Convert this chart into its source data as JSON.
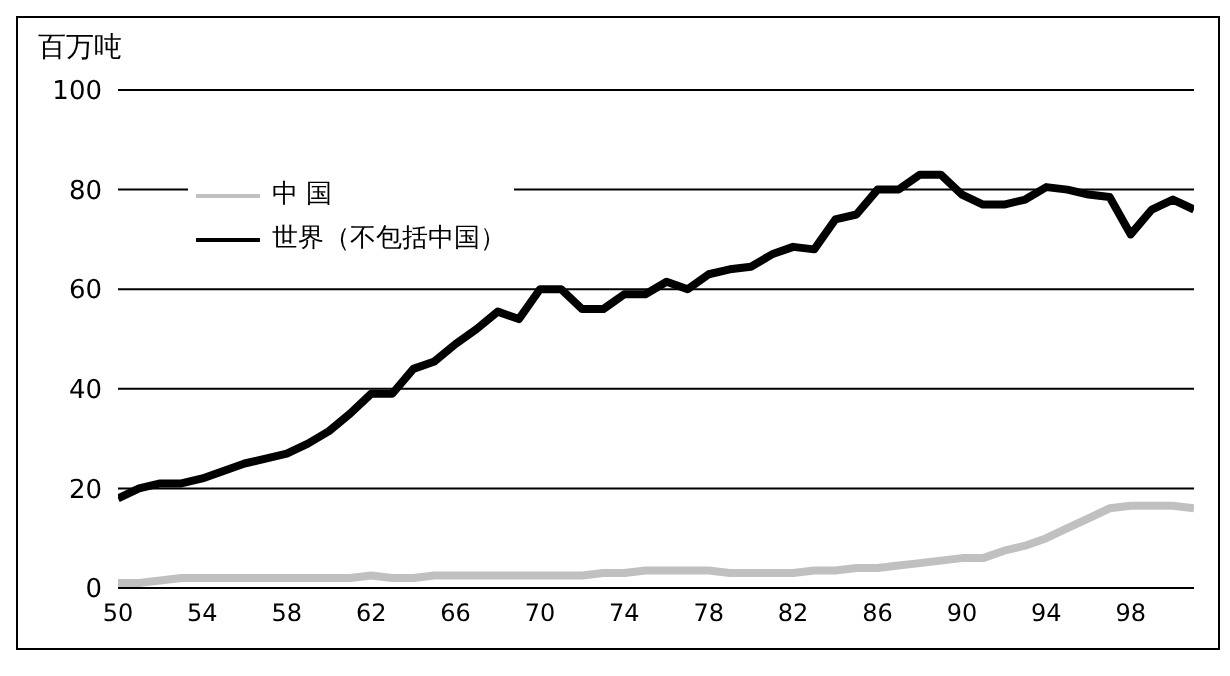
{
  "chart_data": {
    "type": "line",
    "ylabel": "百万吨",
    "x": [
      1950,
      1951,
      1952,
      1953,
      1954,
      1955,
      1956,
      1957,
      1958,
      1959,
      1960,
      1961,
      1962,
      1963,
      1964,
      1965,
      1966,
      1967,
      1968,
      1969,
      1970,
      1971,
      1972,
      1973,
      1974,
      1975,
      1976,
      1977,
      1978,
      1979,
      1980,
      1981,
      1982,
      1983,
      1984,
      1985,
      1986,
      1987,
      1988,
      1989,
      1990,
      1991,
      1992,
      1993,
      1994,
      1995,
      1996,
      1997,
      1998,
      1999,
      2000,
      2001
    ],
    "series": [
      {
        "name": "中 国",
        "color": "#c0c0c0",
        "values": [
          1,
          1,
          1.5,
          2,
          2,
          2,
          2,
          2,
          2,
          2,
          2,
          2,
          2.5,
          2,
          2,
          2.5,
          2.5,
          2.5,
          2.5,
          2.5,
          2.5,
          2.5,
          2.5,
          3,
          3,
          3.5,
          3.5,
          3.5,
          3.5,
          3,
          3,
          3,
          3,
          3.5,
          3.5,
          4,
          4,
          4.5,
          5,
          5.5,
          6,
          6,
          7.5,
          8.5,
          10,
          12,
          14,
          16,
          16.5,
          16.5,
          16.5,
          16
        ]
      },
      {
        "name": "世界（不包括中国）",
        "color": "#000000",
        "values": [
          18,
          20,
          21,
          21,
          22,
          23.5,
          25,
          26,
          27,
          29,
          31.5,
          35,
          39,
          39,
          44,
          45.5,
          49,
          52,
          55.5,
          54,
          60,
          60,
          56,
          56,
          59,
          59,
          61.5,
          60,
          63,
          64,
          64.5,
          67,
          68.5,
          68,
          74,
          75,
          80,
          80,
          83,
          83,
          79,
          77,
          77,
          78,
          80.5,
          80,
          79,
          78.5,
          71,
          76,
          78,
          76
        ]
      }
    ],
    "xlim": [
      1950,
      2001
    ],
    "xticks": [
      {
        "value": 1950,
        "label": "50"
      },
      {
        "value": 1954,
        "label": "54"
      },
      {
        "value": 1958,
        "label": "58"
      },
      {
        "value": 1962,
        "label": "62"
      },
      {
        "value": 1966,
        "label": "66"
      },
      {
        "value": 1970,
        "label": "70"
      },
      {
        "value": 1974,
        "label": "74"
      },
      {
        "value": 1978,
        "label": "78"
      },
      {
        "value": 1982,
        "label": "82"
      },
      {
        "value": 1986,
        "label": "86"
      },
      {
        "value": 1990,
        "label": "90"
      },
      {
        "value": 1994,
        "label": "94"
      },
      {
        "value": 1998,
        "label": "98"
      }
    ],
    "ylim": [
      0,
      100
    ],
    "yticks": [
      0,
      20,
      40,
      60,
      80,
      100
    ],
    "grid": "y",
    "legend": "top left",
    "marker": "none",
    "line_style": "solid"
  }
}
